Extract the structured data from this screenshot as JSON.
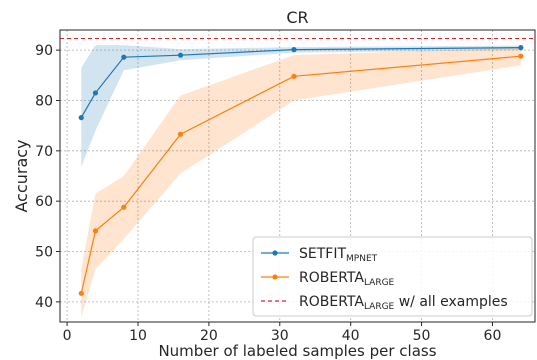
{
  "chart_data": {
    "type": "line",
    "title": "CR",
    "xlabel": "Number of labeled samples per class",
    "ylabel": "Accuracy",
    "xlim": [
      -1,
      66
    ],
    "ylim": [
      36,
      94
    ],
    "xticks": [
      0,
      10,
      20,
      30,
      40,
      50,
      60
    ],
    "yticks": [
      40,
      50,
      60,
      70,
      80,
      90
    ],
    "grid": true,
    "grid_style": "dotted",
    "legend_position": "lower-right",
    "reference_line": {
      "label_main": "ROBERTA",
      "label_sub": "LARGE",
      "label_tail": " w/ all examples",
      "y": 92.3,
      "color": "#d62728"
    },
    "series": [
      {
        "label_main": "SETFIT",
        "label_sub": "MPNET",
        "color": "#1f77b4",
        "x": [
          2,
          4,
          8,
          16,
          32,
          64
        ],
        "y": [
          76.6,
          81.5,
          88.6,
          89.0,
          90.1,
          90.5
        ],
        "band_low": [
          66.8,
          74.0,
          86.0,
          88.0,
          89.5,
          90.0
        ],
        "band_high": [
          86.5,
          91.0,
          91.0,
          90.2,
          90.6,
          90.9
        ]
      },
      {
        "label_main": "ROBERTA",
        "label_sub": "LARGE",
        "color": "#ff7f0e",
        "x": [
          2,
          4,
          8,
          16,
          32,
          64
        ],
        "y": [
          41.7,
          54.1,
          58.8,
          73.3,
          84.8,
          88.8
        ],
        "band_low": [
          37.0,
          46.5,
          52.5,
          65.5,
          80.0,
          87.0
        ],
        "band_high": [
          46.5,
          61.5,
          65.0,
          81.0,
          89.0,
          90.5
        ]
      }
    ]
  }
}
